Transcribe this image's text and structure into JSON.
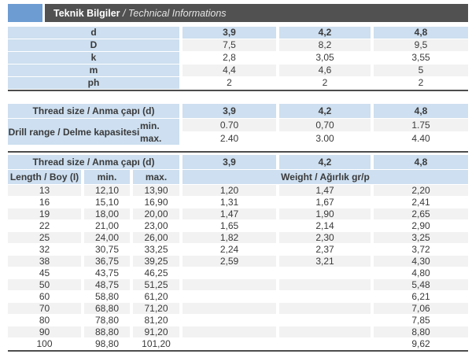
{
  "header": {
    "title_bold": "Teknik Bilgiler",
    "title_italic": " / Technical Informations"
  },
  "colors": {
    "accent_blue": "#6d9cd2",
    "titlebar_gray": "#515151",
    "cell_blue": "#cddff0",
    "stripe_gray": "#f2f2f2",
    "separator_dark": "#4d4d4d",
    "text": "#3a3a3a"
  },
  "table1": {
    "rows": [
      {
        "label": "d",
        "values": [
          "3,9",
          "4,2",
          "4,8"
        ],
        "header": true
      },
      {
        "label": "D",
        "values": [
          "7,5",
          "8,2",
          "9,5"
        ]
      },
      {
        "label": "k",
        "values": [
          "2,8",
          "3,05",
          "3,55"
        ]
      },
      {
        "label": "m",
        "values": [
          "4,4",
          "4,6",
          "5"
        ]
      },
      {
        "label": "ph",
        "values": [
          "2",
          "2",
          "2"
        ]
      }
    ]
  },
  "table2": {
    "thread_label": "Thread size / Anma çapı (d)",
    "thread_values": [
      "3,9",
      "4,2",
      "4,8"
    ],
    "drill_label": "Drill range / Delme kapasitesi",
    "min_label": "min.",
    "max_label": "max.",
    "min_values": [
      "0.70",
      "0,70",
      "1.75"
    ],
    "max_values": [
      "2.40",
      "3.00",
      "4.40"
    ]
  },
  "table3": {
    "thread_label": "Thread size / Anma çapı (d)",
    "thread_values": [
      "3,9",
      "4,2",
      "4,8"
    ],
    "length_label": "Length / Boy (I)",
    "min_label": "min.",
    "max_label": "max.",
    "weight_label": "Weight / Ağırlık gr/p",
    "rows": [
      [
        "13",
        "12,10",
        "13,90",
        "1,20",
        "1,47",
        "2,20"
      ],
      [
        "16",
        "15,10",
        "16,90",
        "1,31",
        "1,67",
        "2,41"
      ],
      [
        "19",
        "18,00",
        "20,00",
        "1,47",
        "1,90",
        "2,65"
      ],
      [
        "22",
        "21,00",
        "23,00",
        "1,65",
        "2,14",
        "2,90"
      ],
      [
        "25",
        "24,00",
        "26,00",
        "1,82",
        "2,30",
        "3,25"
      ],
      [
        "32",
        "30,75",
        "33,25",
        "2,24",
        "2,37",
        "3,72"
      ],
      [
        "38",
        "36,75",
        "39,25",
        "2,59",
        "3,21",
        "4,30"
      ],
      [
        "45",
        "43,75",
        "46,25",
        "",
        "",
        "4,80"
      ],
      [
        "50",
        "48,75",
        "51,25",
        "",
        "",
        "5,48"
      ],
      [
        "60",
        "58,80",
        "61,20",
        "",
        "",
        "6,21"
      ],
      [
        "70",
        "68,80",
        "71,20",
        "",
        "",
        "7,06"
      ],
      [
        "80",
        "78,80",
        "81,20",
        "",
        "",
        "7,85"
      ],
      [
        "90",
        "88,80",
        "91,20",
        "",
        "",
        "8,80"
      ],
      [
        "100",
        "98,80",
        "101,20",
        "",
        "",
        "9,62"
      ]
    ]
  }
}
